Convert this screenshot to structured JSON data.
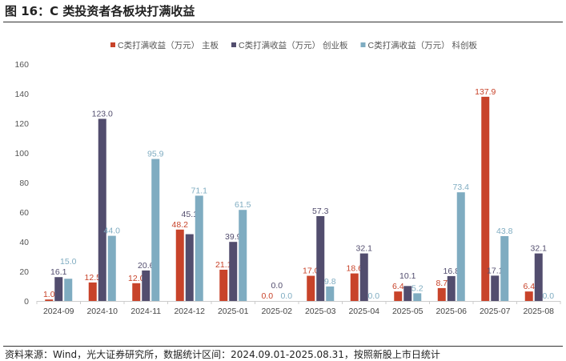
{
  "title": "图 16：C 类投资者各板块打满收益",
  "source": "资料来源：Wind，光大证券研究所，数据统计区间：2024.09.01-2025.08.31，按照新股上市日统计",
  "chart_data": {
    "type": "bar",
    "title": "",
    "xlabel": "",
    "ylabel": "",
    "ylim": [
      0,
      160
    ],
    "yticks": [
      0,
      20,
      40,
      60,
      80,
      100,
      120,
      140,
      160
    ],
    "grid": false,
    "legend_position": "top-center",
    "categories": [
      "2024-09",
      "2024-10",
      "2024-11",
      "2024-12",
      "2025-01",
      "2025-02",
      "2025-03",
      "2025-04",
      "2025-05",
      "2025-06",
      "2025-07",
      "2025-08"
    ],
    "series": [
      {
        "name": "C类打满收益（万元） 主板",
        "color": "#C8432A",
        "values": [
          1.0,
          12.5,
          12.0,
          48.2,
          21.1,
          0.0,
          17.0,
          18.6,
          6.4,
          8.7,
          137.9,
          6.4
        ]
      },
      {
        "name": "C类打满收益（万元） 创业板",
        "color": "#524D6E",
        "values": [
          16.1,
          123.0,
          20.6,
          45.1,
          39.9,
          0.0,
          57.3,
          32.1,
          10.1,
          16.8,
          17.1,
          32.1
        ]
      },
      {
        "name": "C类打满收益（万元） 科创板",
        "color": "#7FACC1",
        "values": [
          15.0,
          44.0,
          95.9,
          71.1,
          61.5,
          0.0,
          9.8,
          0.0,
          5.2,
          73.4,
          43.8,
          0.0
        ]
      }
    ]
  }
}
